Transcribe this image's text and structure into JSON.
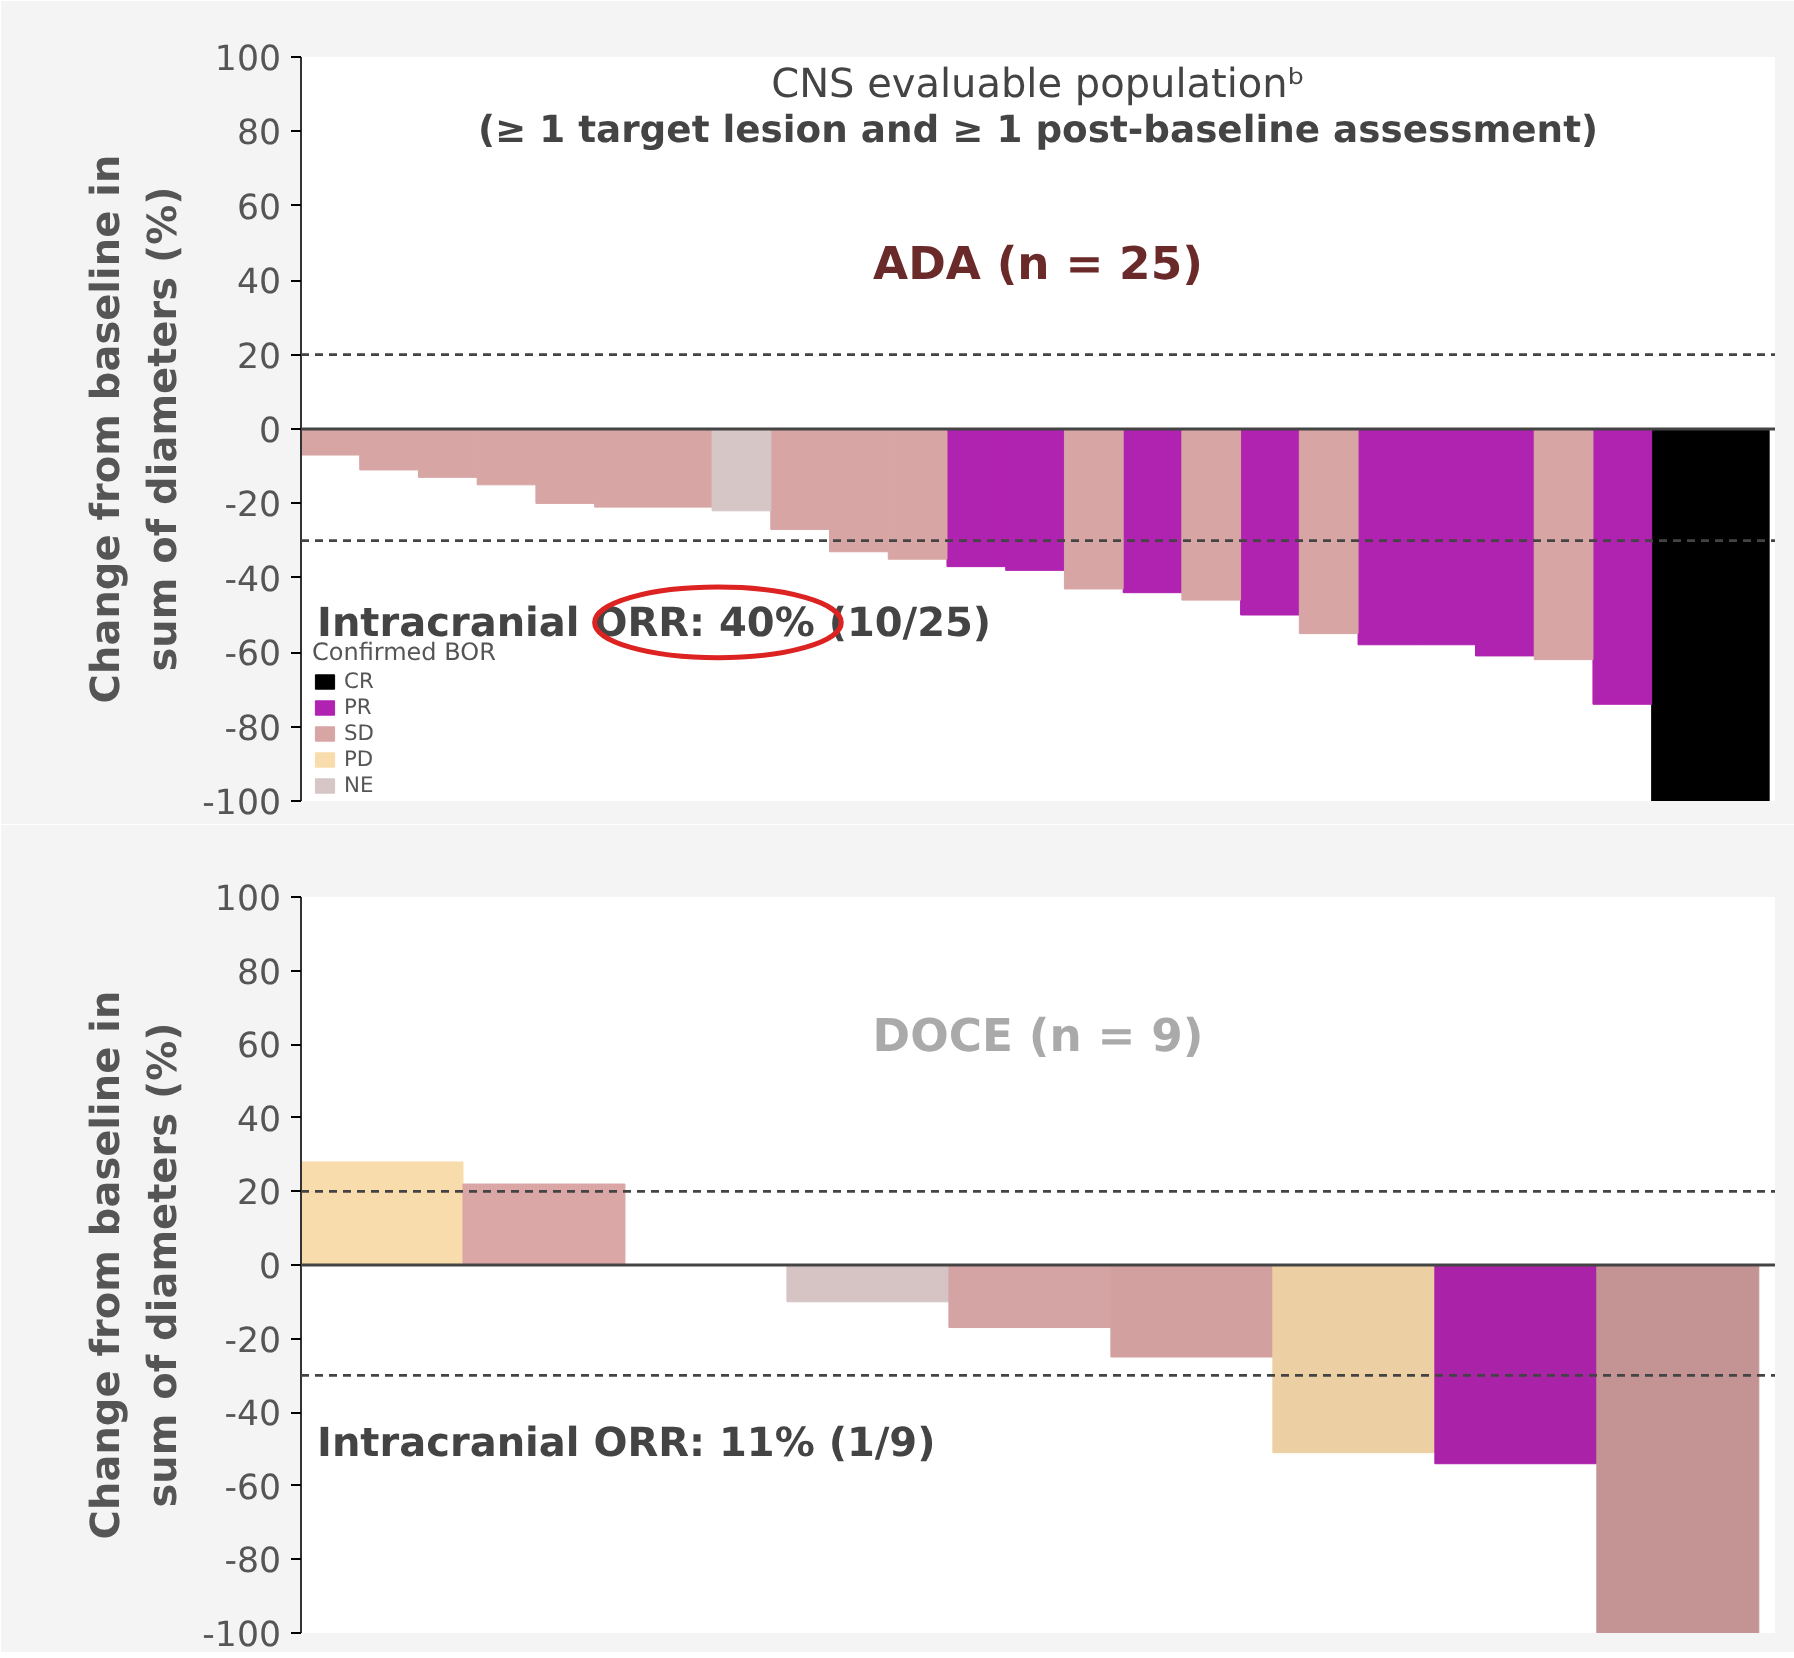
{
  "chart_data": [
    {
      "type": "bar",
      "title": "CNS evaluable populationᵇ",
      "subtitle": "(≥ 1 target lesion and ≥ 1 post-baseline assessment)",
      "annotations": [
        "ADA (n = 25)",
        "Intracranial ORR: 40% (10/25)"
      ],
      "ylabel": "Change from baseline in\nsum of diameters (%)",
      "categories": [
        null,
        null,
        null,
        null,
        null,
        null,
        null,
        null,
        null,
        null,
        null,
        null,
        null,
        null,
        null,
        null,
        null,
        null,
        null,
        null,
        null,
        null,
        null,
        null,
        null
      ],
      "series": [
        {
          "name": "CR",
          "color": "#000000",
          "values": [
            null,
            null,
            null,
            null,
            null,
            null,
            null,
            null,
            null,
            null,
            null,
            null,
            null,
            null,
            null,
            null,
            null,
            null,
            null,
            null,
            null,
            null,
            null,
            -100,
            -100
          ]
        },
        {
          "name": "PR",
          "color": "#b022b0",
          "values": [
            null,
            null,
            null,
            null,
            null,
            null,
            null,
            null,
            null,
            null,
            null,
            -37,
            -38,
            null,
            -44,
            null,
            -50,
            null,
            -58,
            -58,
            -61,
            null,
            -74,
            null,
            null
          ]
        },
        {
          "name": "SD",
          "color": "#d8a5a5",
          "values": [
            -7,
            -11,
            -13,
            -15,
            -20,
            -21,
            -21,
            null,
            -27,
            -33,
            -35,
            null,
            null,
            -43,
            null,
            -46,
            null,
            -55,
            null,
            null,
            null,
            -62,
            null,
            null,
            null
          ]
        },
        {
          "name": "PD",
          "color": "#f8dcab",
          "values": [
            null,
            null,
            null,
            null,
            null,
            null,
            null,
            null,
            null,
            null,
            null,
            null,
            null,
            null,
            null,
            null,
            null,
            null,
            null,
            null,
            null,
            null,
            null,
            null,
            null
          ]
        },
        {
          "name": "NE",
          "color": "#d6c6c6",
          "values": [
            null,
            null,
            null,
            null,
            null,
            null,
            null,
            -22,
            null,
            null,
            null,
            null,
            null,
            null,
            null,
            null,
            null,
            null,
            null,
            null,
            null,
            null,
            null,
            null,
            null
          ]
        }
      ],
      "legend_title": "Confirmed BOR",
      "legend": "bottom left",
      "ylim": [
        -100,
        100
      ],
      "yticks": [
        -100,
        -80,
        -60,
        -40,
        -20,
        0,
        20,
        40,
        60,
        80,
        100
      ],
      "tick_labels": "y",
      "ref_lines": [
        {
          "axis": "y",
          "value": 20,
          "line_style": "dashed"
        },
        {
          "axis": "y",
          "value": -30,
          "line_style": "dashed"
        },
        {
          "axis": "y",
          "value": 0,
          "line_style": "solid"
        }
      ]
    },
    {
      "type": "bar",
      "title": "DOCE (n = 9)",
      "annotations": [
        "Intracranial ORR: 11% (1/9)"
      ],
      "ylabel": "Change from baseline in\nsum of diameters (%)",
      "categories": [
        null,
        null,
        null,
        null,
        null,
        null,
        null,
        null,
        null
      ],
      "values": [
        28,
        22,
        0,
        -10,
        -17,
        -25,
        -51,
        -54,
        -100
      ],
      "colors": [
        "#f8dcab",
        "#dba6a6",
        "#dba6a6",
        "#d6c4c4",
        "#d4a3a3",
        "#d3a0a0",
        "#ecd0a4",
        "#a922a8",
        "#c49494"
      ],
      "ylim": [
        -100,
        100
      ],
      "yticks": [
        -100,
        -80,
        -60,
        -40,
        -20,
        0,
        20,
        40,
        60,
        80,
        100
      ],
      "tick_labels": "y",
      "ref_lines": [
        {
          "axis": "y",
          "value": 20,
          "line_style": "dashed"
        },
        {
          "axis": "y",
          "value": -30,
          "line_style": "dashed"
        },
        {
          "axis": "y",
          "value": 0,
          "line_style": "solid"
        }
      ]
    }
  ]
}
